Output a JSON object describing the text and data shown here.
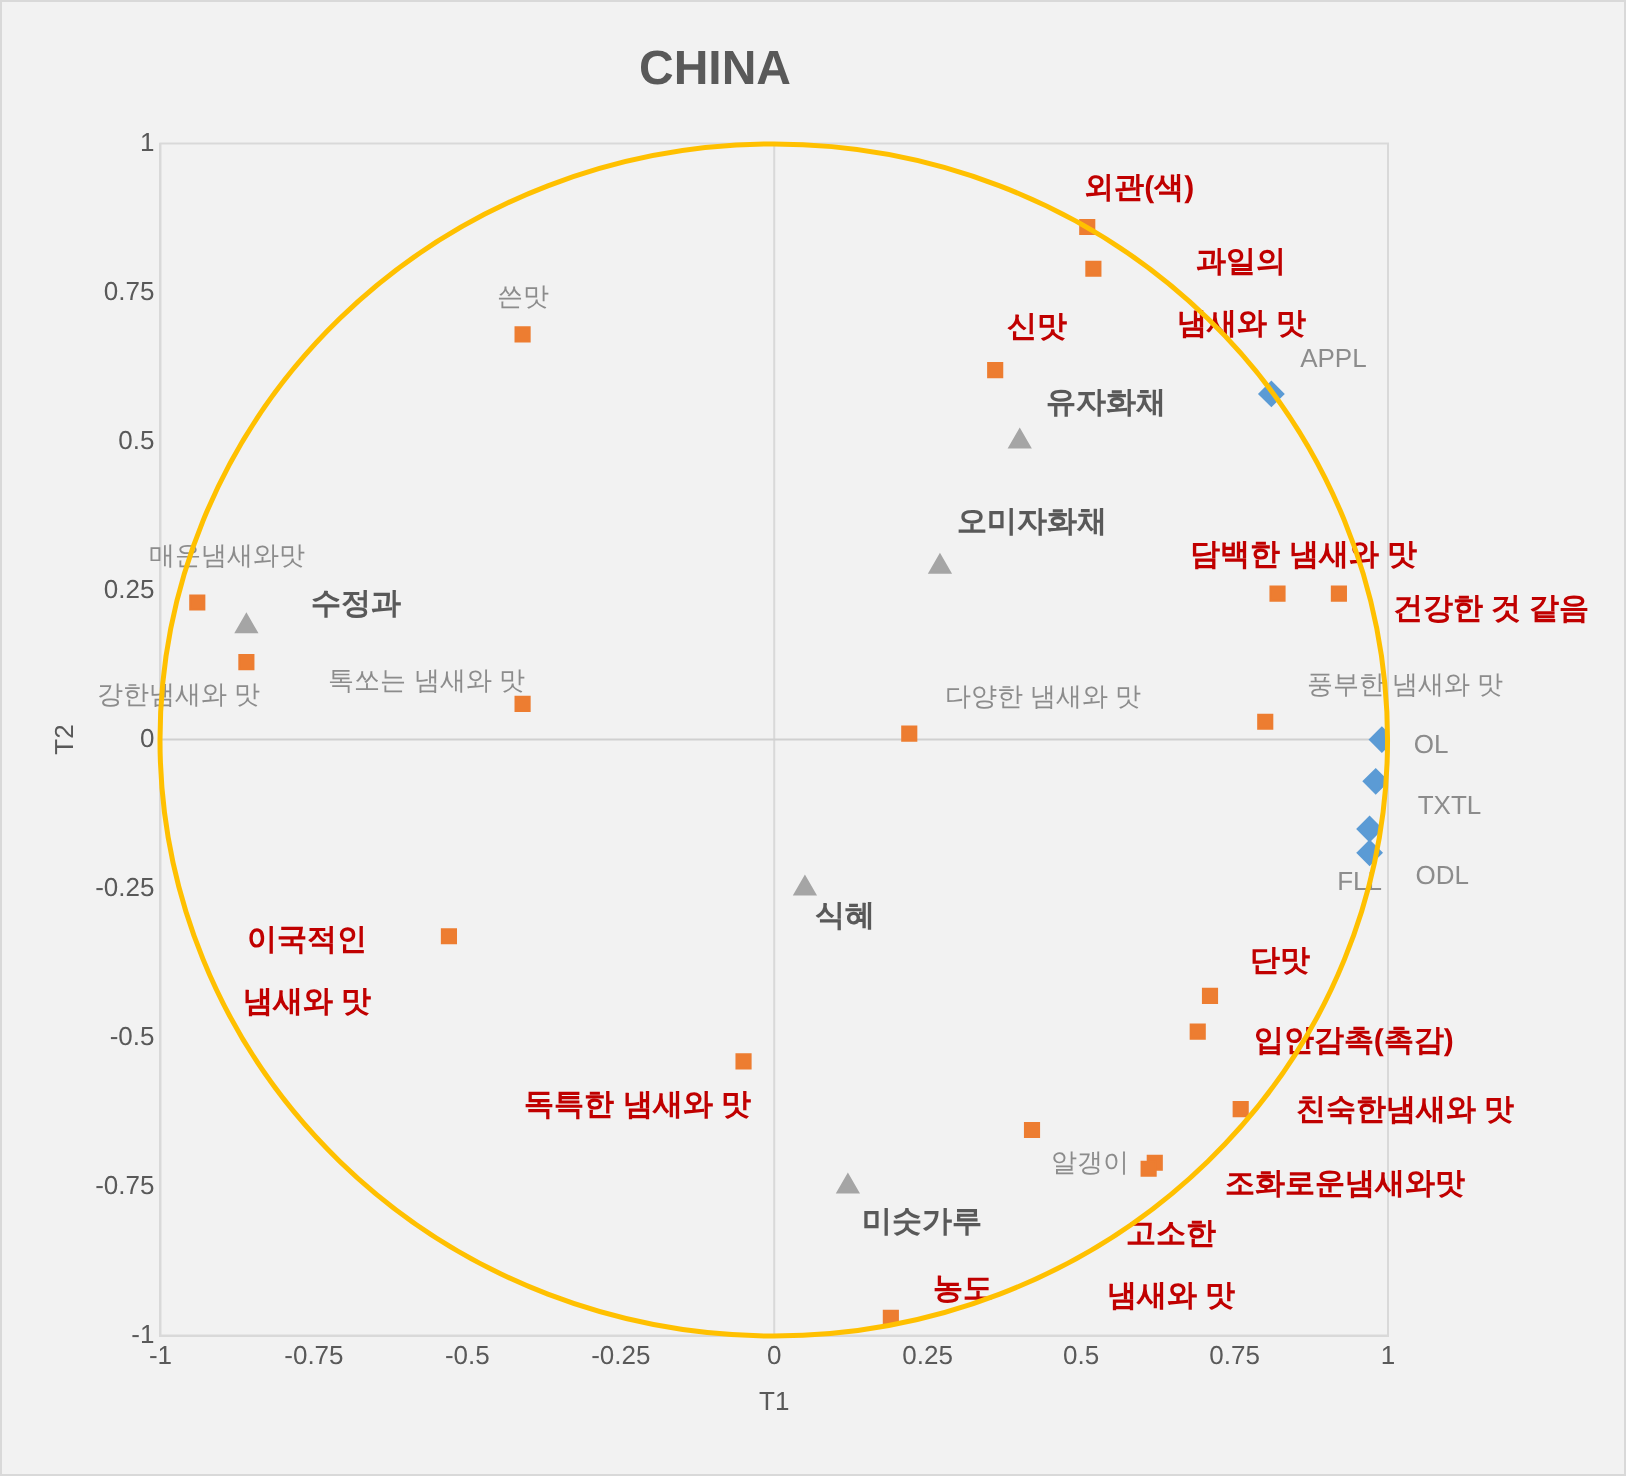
{
  "chart_data": {
    "type": "scatter",
    "title": "CHINA",
    "xlabel": "T1",
    "ylabel": "T2",
    "xlim": [
      -1,
      1
    ],
    "ylim": [
      -1,
      1
    ],
    "xticks": [
      -1,
      -0.75,
      -0.5,
      -0.25,
      0,
      0.25,
      0.5,
      0.75,
      1
    ],
    "yticks": [
      -1,
      -0.75,
      -0.5,
      -0.25,
      0,
      0.25,
      0.5,
      0.75,
      1
    ],
    "grid": false,
    "legend": false,
    "ref_lines": [
      {
        "axis": "x",
        "value": 0,
        "color": "#d9d9d9"
      },
      {
        "axis": "y",
        "value": 0,
        "color": "#d0d0d0"
      }
    ],
    "series": [
      {
        "type": "scatter",
        "color": "#ed7d31",
        "marker": "square",
        "x": [
          -0.41,
          -0.94,
          -0.86,
          -0.41,
          0.51,
          0.52,
          0.36,
          0.82,
          0.92,
          0.22,
          0.8,
          -0.53,
          -0.05,
          0.71,
          0.69,
          0.76,
          0.62,
          0.61,
          0.42,
          0.19
        ],
        "values": [
          0.68,
          0.23,
          0.13,
          0.06,
          0.86,
          0.79,
          0.62,
          0.245,
          0.245,
          0.01,
          0.03,
          -0.33,
          -0.54,
          -0.43,
          -0.49,
          -0.62,
          -0.71,
          -0.72,
          -0.655,
          -0.97
        ]
      },
      {
        "type": "scatter",
        "color": "#a5a5a5",
        "marker": "triangle",
        "x": [
          -0.86,
          0.4,
          0.27,
          0.05,
          0.12
        ],
        "values": [
          0.19,
          0.5,
          0.29,
          -0.25,
          -0.75
        ]
      },
      {
        "type": "scatter",
        "color": "#5b9bd5",
        "marker": "diamond",
        "x": [
          0.81,
          0.99,
          0.98,
          0.97,
          0.97
        ],
        "values": [
          0.58,
          0,
          -0.07,
          -0.15,
          -0.19
        ]
      }
    ],
    "annotations": [
      {
        "text": "쓴맛",
        "x": -0.41,
        "y": 0.68
      },
      {
        "text": "매운냄새와맛",
        "x": -0.94,
        "y": 0.23
      },
      {
        "text": "강한냄새와 맛",
        "x": -0.86,
        "y": 0.13
      },
      {
        "text": "톡쏘는 냄새와 맛",
        "x": -0.41,
        "y": 0.06
      },
      {
        "text": "수정과",
        "x": -0.86,
        "y": 0.19
      },
      {
        "text": "외관(색)",
        "x": 0.51,
        "y": 0.86
      },
      {
        "text": "과일의\n냄새와 맛",
        "x": 0.52,
        "y": 0.79
      },
      {
        "text": "신맛",
        "x": 0.36,
        "y": 0.62
      },
      {
        "text": "APPL",
        "x": 0.81,
        "y": 0.58
      },
      {
        "text": "유자화채",
        "x": 0.4,
        "y": 0.5
      },
      {
        "text": "오미자화채",
        "x": 0.27,
        "y": 0.29
      },
      {
        "text": "담백한 냄새와 맛",
        "x": 0.82,
        "y": 0.245
      },
      {
        "text": "건강한 것 같음",
        "x": 0.92,
        "y": 0.245
      },
      {
        "text": "다양한 냄새와 맛",
        "x": 0.22,
        "y": 0.01
      },
      {
        "text": "풍부한 냄새와 맛",
        "x": 0.8,
        "y": 0.03
      },
      {
        "text": "OL",
        "x": 0.99,
        "y": 0
      },
      {
        "text": "TXTL",
        "x": 0.98,
        "y": -0.07
      },
      {
        "text": "ODL",
        "x": 0.97,
        "y": -0.15
      },
      {
        "text": "FLL",
        "x": 0.97,
        "y": -0.19
      },
      {
        "text": "식혜",
        "x": 0.05,
        "y": -0.25
      },
      {
        "text": "이국적인\n냄새와 맛",
        "x": -0.53,
        "y": -0.33
      },
      {
        "text": "독특한 냄새와 맛",
        "x": -0.05,
        "y": -0.54
      },
      {
        "text": "단맛",
        "x": 0.71,
        "y": -0.43
      },
      {
        "text": "입안감촉(촉감)",
        "x": 0.69,
        "y": -0.49
      },
      {
        "text": "친숙한냄새와 맛",
        "x": 0.76,
        "y": -0.62
      },
      {
        "text": "알갱이",
        "x": 0.42,
        "y": -0.655
      },
      {
        "text": "조화로운냄새와맛",
        "x": 0.61,
        "y": -0.72
      },
      {
        "text": "고소한\n냄새와 맛",
        "x": 0.62,
        "y": -0.71
      },
      {
        "text": "미숫가루",
        "x": 0.12,
        "y": -0.75
      },
      {
        "text": "농도",
        "x": 0.19,
        "y": -0.97
      }
    ]
  }
}
